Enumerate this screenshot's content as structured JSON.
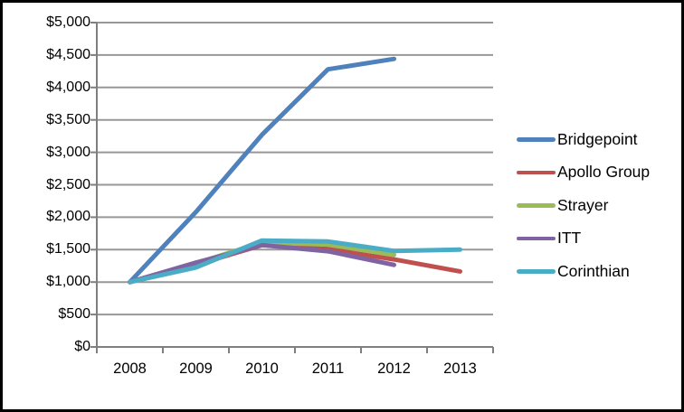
{
  "chart_data": {
    "type": "line",
    "title": "",
    "xlabel": "",
    "ylabel": "",
    "categories": [
      "2008",
      "2009",
      "2010",
      "2011",
      "2012",
      "2013"
    ],
    "y_ticks": [
      "$5,000",
      "$4,500",
      "$4,000",
      "$3,500",
      "$3,000",
      "$2,500",
      "$2,000",
      "$1,500",
      "$1,000",
      "$500",
      "$0"
    ],
    "ylim": [
      0,
      5000
    ],
    "y_step": 500,
    "grid": true,
    "legend_position": "right",
    "series": [
      {
        "name": "Bridgepoint",
        "color": "#4F81BD",
        "values": [
          1000,
          2080,
          3270,
          4280,
          4440,
          null
        ]
      },
      {
        "name": "Apollo Group",
        "color": "#C0504D",
        "values": [
          1000,
          1265,
          1570,
          1510,
          1350,
          1165
        ]
      },
      {
        "name": "Strayer",
        "color": "#9BBB59",
        "values": [
          1000,
          1290,
          1610,
          1580,
          1420,
          null
        ]
      },
      {
        "name": "ITT",
        "color": "#8064A2",
        "values": [
          1000,
          1300,
          1570,
          1475,
          1265,
          null
        ]
      },
      {
        "name": "Corinthian",
        "color": "#4BACC6",
        "values": [
          1000,
          1225,
          1640,
          1625,
          1480,
          1500
        ]
      }
    ],
    "colors": {
      "gridline": "#979797",
      "axis": "#7F7F7F",
      "text": "#000000",
      "background": "#FFFFFF",
      "frame_border": "#000000"
    }
  }
}
